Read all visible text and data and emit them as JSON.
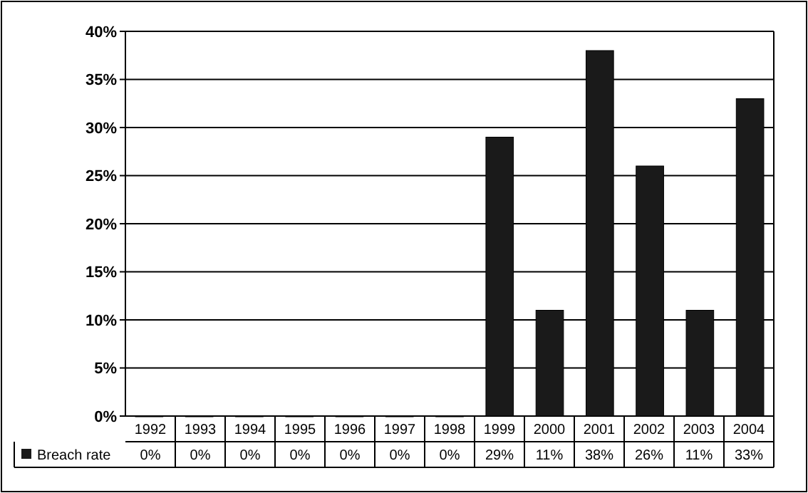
{
  "chart_data": {
    "type": "bar",
    "categories": [
      "1992",
      "1993",
      "1994",
      "1995",
      "1996",
      "1997",
      "1998",
      "1999",
      "2000",
      "2001",
      "2002",
      "2003",
      "2004"
    ],
    "series": [
      {
        "name": "Breach rate",
        "color": "#1a1a1a",
        "values": [
          0,
          0,
          0,
          0,
          0,
          0,
          0,
          29,
          11,
          38,
          26,
          11,
          33
        ],
        "value_labels": [
          "0%",
          "0%",
          "0%",
          "0%",
          "0%",
          "0%",
          "0%",
          "29%",
          "11%",
          "38%",
          "26%",
          "11%",
          "33%"
        ]
      }
    ],
    "ylim": [
      0,
      40
    ],
    "yticks": [
      {
        "value": 0,
        "label": "0%"
      },
      {
        "value": 5,
        "label": "5%"
      },
      {
        "value": 10,
        "label": "10%"
      },
      {
        "value": 15,
        "label": "15%"
      },
      {
        "value": 20,
        "label": "20%"
      },
      {
        "value": 25,
        "label": "25%"
      },
      {
        "value": 30,
        "label": "30%"
      },
      {
        "value": 35,
        "label": "35%"
      },
      {
        "value": 40,
        "label": "40%"
      }
    ],
    "grid": "y",
    "legend": "bottom"
  }
}
